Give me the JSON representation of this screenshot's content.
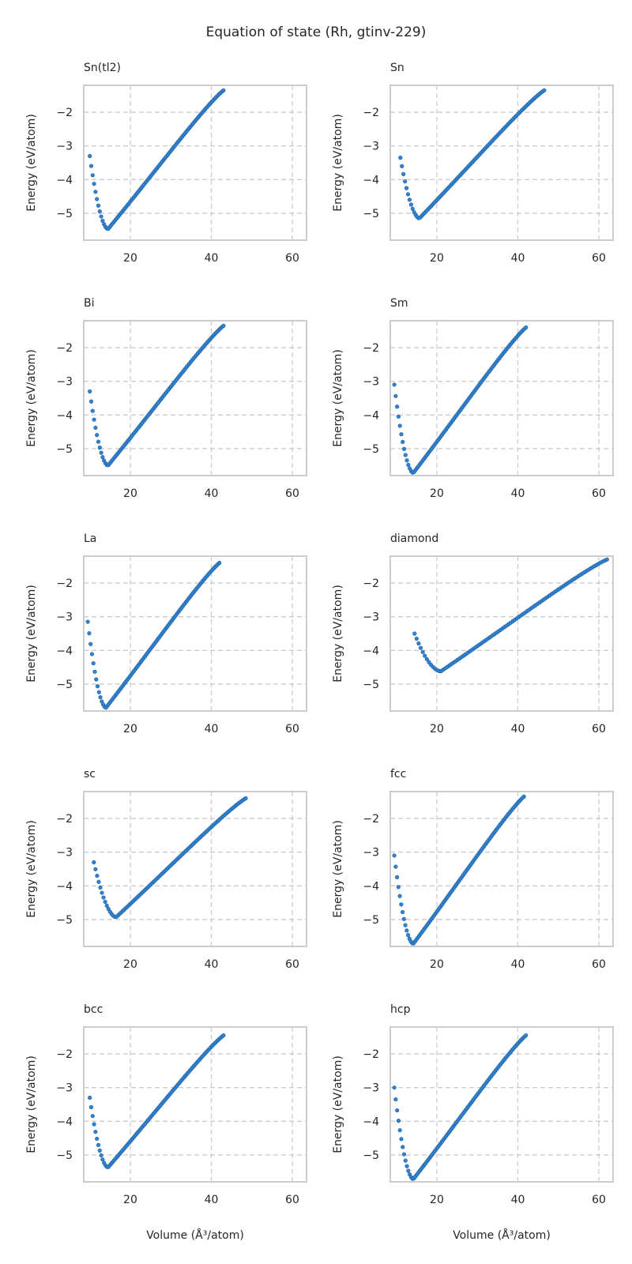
{
  "figure": {
    "title": "Equation of state (Rh, gtinv-229)",
    "ylabel": "Energy (eV/atom)",
    "xlabel": "Volume (Å³/atom)"
  },
  "chart_data": [
    {
      "type": "scatter",
      "title": "Sn(tl2)",
      "xlim": [
        8.5,
        63.5
      ],
      "ylim": [
        -5.8,
        -1.2
      ],
      "xticks": [
        20,
        40,
        60
      ],
      "yticks": [
        -5,
        -4,
        -3,
        -2
      ],
      "curve": {
        "v0": 14.5,
        "e0": -5.47,
        "vmin": 10.0,
        "vmax": 43.0,
        "emin": -3.3,
        "emax": -1.35,
        "n": 95
      },
      "color": "#3182cf"
    },
    {
      "type": "scatter",
      "title": "Sn",
      "xlim": [
        8.5,
        63.5
      ],
      "ylim": [
        -5.8,
        -1.2
      ],
      "xticks": [
        20,
        40,
        60
      ],
      "yticks": [
        -5,
        -4,
        -3,
        -2
      ],
      "curve": {
        "v0": 15.7,
        "e0": -5.15,
        "vmin": 11.0,
        "vmax": 46.5,
        "emin": -3.35,
        "emax": -1.35,
        "n": 95
      },
      "color": "#3182cf"
    },
    {
      "type": "scatter",
      "title": "Bi",
      "xlim": [
        8.5,
        63.5
      ],
      "ylim": [
        -5.8,
        -1.2
      ],
      "xticks": [
        20,
        40,
        60
      ],
      "yticks": [
        -5,
        -4,
        -3,
        -2
      ],
      "curve": {
        "v0": 14.5,
        "e0": -5.5,
        "vmin": 10.0,
        "vmax": 43.0,
        "emin": -3.3,
        "emax": -1.35,
        "n": 95
      },
      "color": "#3182cf"
    },
    {
      "type": "scatter",
      "title": "Sm",
      "xlim": [
        8.5,
        63.5
      ],
      "ylim": [
        -5.8,
        -1.2
      ],
      "xticks": [
        20,
        40,
        60
      ],
      "yticks": [
        -5,
        -4,
        -3,
        -2
      ],
      "curve": {
        "v0": 14.2,
        "e0": -5.72,
        "vmin": 9.5,
        "vmax": 42.0,
        "emin": -3.1,
        "emax": -1.4,
        "n": 95
      },
      "color": "#3182cf"
    },
    {
      "type": "scatter",
      "title": "La",
      "xlim": [
        8.5,
        63.5
      ],
      "ylim": [
        -5.8,
        -1.2
      ],
      "xticks": [
        20,
        40,
        60
      ],
      "yticks": [
        -5,
        -4,
        -3,
        -2
      ],
      "curve": {
        "v0": 14.0,
        "e0": -5.7,
        "vmin": 9.5,
        "vmax": 42.0,
        "emin": -3.15,
        "emax": -1.4,
        "n": 95
      },
      "color": "#3182cf"
    },
    {
      "type": "scatter",
      "title": "diamond",
      "xlim": [
        8.5,
        63.5
      ],
      "ylim": [
        -5.8,
        -1.2
      ],
      "xticks": [
        20,
        40,
        60
      ],
      "yticks": [
        -5,
        -4,
        -3,
        -2
      ],
      "curve": {
        "v0": 21.0,
        "e0": -4.62,
        "vmin": 14.5,
        "vmax": 62.0,
        "emin": -3.5,
        "emax": -1.3,
        "n": 95
      },
      "color": "#3182cf"
    },
    {
      "type": "scatter",
      "title": "sc",
      "xlim": [
        8.5,
        63.5
      ],
      "ylim": [
        -5.8,
        -1.2
      ],
      "xticks": [
        20,
        40,
        60
      ],
      "yticks": [
        -5,
        -4,
        -3,
        -2
      ],
      "curve": {
        "v0": 16.5,
        "e0": -4.93,
        "vmin": 11.0,
        "vmax": 48.5,
        "emin": -3.3,
        "emax": -1.4,
        "n": 95
      },
      "color": "#3182cf"
    },
    {
      "type": "scatter",
      "title": "fcc",
      "xlim": [
        8.5,
        63.5
      ],
      "ylim": [
        -5.8,
        -1.2
      ],
      "xticks": [
        20,
        40,
        60
      ],
      "yticks": [
        -5,
        -4,
        -3,
        -2
      ],
      "curve": {
        "v0": 14.2,
        "e0": -5.72,
        "vmin": 9.5,
        "vmax": 41.5,
        "emin": -3.1,
        "emax": -1.35,
        "n": 95
      },
      "color": "#3182cf"
    },
    {
      "type": "scatter",
      "title": "bcc",
      "xlim": [
        8.5,
        63.5
      ],
      "ylim": [
        -5.8,
        -1.2
      ],
      "xticks": [
        20,
        40,
        60
      ],
      "yticks": [
        -5,
        -4,
        -3,
        -2
      ],
      "curve": {
        "v0": 14.5,
        "e0": -5.37,
        "vmin": 10.0,
        "vmax": 43.0,
        "emin": -3.3,
        "emax": -1.45,
        "n": 95
      },
      "color": "#3182cf"
    },
    {
      "type": "scatter",
      "title": "hcp",
      "xlim": [
        8.5,
        63.5
      ],
      "ylim": [
        -5.8,
        -1.2
      ],
      "xticks": [
        20,
        40,
        60
      ],
      "yticks": [
        -5,
        -4,
        -3,
        -2
      ],
      "curve": {
        "v0": 14.2,
        "e0": -5.72,
        "vmin": 9.5,
        "vmax": 42.0,
        "emin": -3.0,
        "emax": -1.45,
        "n": 95
      },
      "color": "#3182cf"
    }
  ]
}
